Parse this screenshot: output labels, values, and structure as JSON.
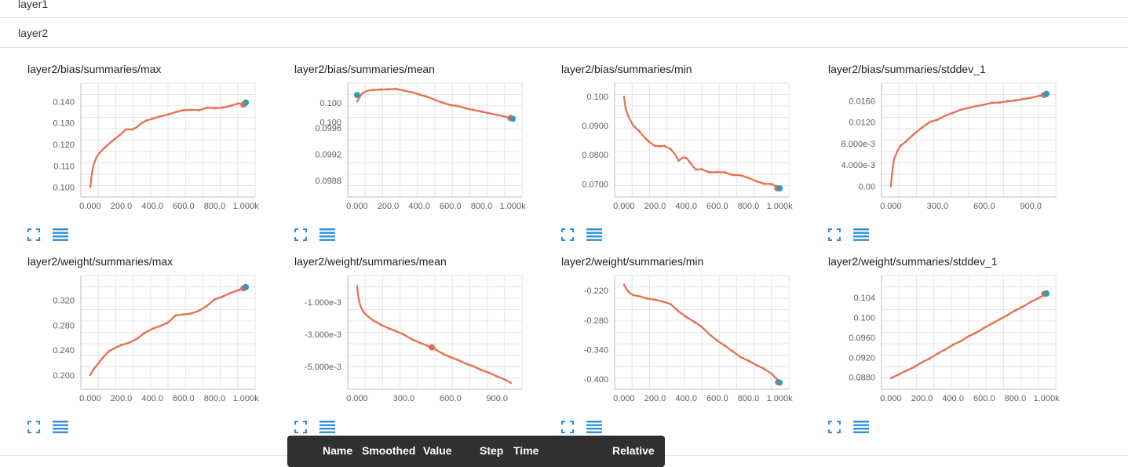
{
  "groups": [
    {
      "label": "layer1"
    },
    {
      "label": "layer2"
    }
  ],
  "tooltip": {
    "columns": [
      "Name",
      "Smoothed",
      "Value",
      "Step",
      "Time",
      "Relative"
    ]
  },
  "colors": {
    "smoothed_line": "#e66e4f",
    "raw_line": "#f2b9a3",
    "hover_dot_run": "#3a98b9",
    "icon_blue": "#2f8ed8"
  },
  "icons": {
    "expand": "expand-corners-icon",
    "data_table": "data-table-icon"
  },
  "chart_data": [
    {
      "type": "line",
      "title": "layer2/bias/summaries/max",
      "x_ticks": [
        "0.000",
        "200.0",
        "400.0",
        "600.0",
        "800.0",
        "1.000k"
      ],
      "y_ticks": [
        "0.100",
        "0.110",
        "0.120",
        "0.130",
        "0.140"
      ],
      "xlim": [
        -60,
        1060
      ],
      "ylim": [
        0.0955,
        0.1485
      ],
      "x": [
        0,
        10,
        20,
        40,
        60,
        100,
        150,
        200,
        230,
        270,
        300,
        330,
        360,
        400,
        450,
        500,
        550,
        600,
        650,
        700,
        750,
        800,
        850,
        900,
        950,
        990,
        1000
      ],
      "y": [
        0.1,
        0.106,
        0.11,
        0.114,
        0.116,
        0.119,
        0.122,
        0.125,
        0.127,
        0.127,
        0.128,
        0.13,
        0.131,
        0.132,
        0.133,
        0.134,
        0.135,
        0.136,
        0.136,
        0.136,
        0.137,
        0.137,
        0.137,
        0.138,
        0.139,
        0.139,
        0.139
      ],
      "hover_points": [
        {
          "x": 985,
          "y": 0.1385,
          "color": "#e66e4f"
        },
        {
          "x": 1000,
          "y": 0.1395,
          "color": "#3a98b9"
        }
      ]
    },
    {
      "type": "line",
      "title": "layer2/bias/summaries/mean",
      "x_ticks": [
        "0.000",
        "200.0",
        "400.0",
        "600.0",
        "800.0",
        "1.000k"
      ],
      "y_ticks": [
        "0.0988",
        "0.0992",
        "0.0996",
        "0.100",
        "0.100"
      ],
      "xlim": [
        -60,
        1060
      ],
      "ylim": [
        0.09855,
        0.10028
      ],
      "x": [
        0,
        30,
        60,
        100,
        150,
        200,
        250,
        300,
        350,
        400,
        450,
        500,
        550,
        600,
        650,
        700,
        750,
        800,
        850,
        900,
        950,
        990,
        1000
      ],
      "y": [
        0.1,
        0.10012,
        0.10016,
        0.10018,
        0.10018,
        0.10019,
        0.10019,
        0.10017,
        0.10014,
        0.10011,
        0.10007,
        0.10003,
        0.09998,
        0.09995,
        0.09993,
        0.0999,
        0.09987,
        0.09985,
        0.09982,
        0.0998,
        0.09977,
        0.09975,
        0.09974
      ],
      "hover_points": [
        {
          "x": 0,
          "y": 0.1001,
          "color": "#3a98b9"
        },
        {
          "x": 985,
          "y": 0.09975,
          "color": "#e66e4f"
        },
        {
          "x": 1000,
          "y": 0.09974,
          "color": "#3a98b9"
        }
      ]
    },
    {
      "type": "line",
      "title": "layer2/bias/summaries/min",
      "x_ticks": [
        "0.000",
        "200.0",
        "400.0",
        "600.0",
        "800.0",
        "1.000k"
      ],
      "y_ticks": [
        "0.0700",
        "0.0800",
        "0.0900",
        "0.100"
      ],
      "xlim": [
        -60,
        1060
      ],
      "ylim": [
        0.0655,
        0.1046
      ],
      "x": [
        0,
        10,
        30,
        60,
        100,
        150,
        200,
        230,
        260,
        300,
        330,
        350,
        380,
        400,
        430,
        460,
        500,
        550,
        600,
        650,
        700,
        750,
        800,
        850,
        900,
        950,
        1000
      ],
      "y": [
        0.1,
        0.096,
        0.093,
        0.09,
        0.088,
        0.085,
        0.083,
        0.083,
        0.083,
        0.082,
        0.08,
        0.078,
        0.079,
        0.079,
        0.077,
        0.075,
        0.075,
        0.074,
        0.074,
        0.074,
        0.073,
        0.073,
        0.072,
        0.071,
        0.07,
        0.07,
        0.0685
      ],
      "hover_points": [
        {
          "x": 985,
          "y": 0.0685,
          "color": "#e66e4f"
        },
        {
          "x": 1000,
          "y": 0.0685,
          "color": "#3a98b9"
        }
      ]
    },
    {
      "type": "line",
      "title": "layer2/bias/summaries/stddev_1",
      "x_ticks": [
        "0.000",
        "300.0",
        "600.0",
        "900.0"
      ],
      "y_ticks": [
        "0.00",
        "4.000e-3",
        "8.000e-3",
        "0.0120",
        "0.0160"
      ],
      "xlim": [
        -60,
        1060
      ],
      "ylim": [
        -0.002,
        0.0193
      ],
      "x": [
        0,
        10,
        20,
        40,
        60,
        100,
        150,
        200,
        250,
        300,
        350,
        400,
        450,
        500,
        550,
        600,
        650,
        700,
        750,
        800,
        850,
        900,
        950,
        990,
        1000
      ],
      "y": [
        0.0,
        0.003,
        0.005,
        0.0065,
        0.0075,
        0.0085,
        0.0098,
        0.011,
        0.012,
        0.0125,
        0.0132,
        0.0138,
        0.0143,
        0.0147,
        0.015,
        0.0153,
        0.0156,
        0.0157,
        0.0159,
        0.0161,
        0.0163,
        0.0166,
        0.0169,
        0.0171,
        0.0172
      ],
      "hover_points": [
        {
          "x": 985,
          "y": 0.0171,
          "color": "#e66e4f"
        },
        {
          "x": 1000,
          "y": 0.0173,
          "color": "#3a98b9"
        }
      ]
    },
    {
      "type": "line",
      "title": "layer2/weight/summaries/max",
      "x_ticks": [
        "0.000",
        "200.0",
        "400.0",
        "600.0",
        "800.0",
        "1.000k"
      ],
      "y_ticks": [
        "0.200",
        "0.240",
        "0.280",
        "0.320"
      ],
      "xlim": [
        -60,
        1060
      ],
      "ylim": [
        0.1775,
        0.3595
      ],
      "x": [
        0,
        20,
        50,
        80,
        120,
        160,
        200,
        250,
        300,
        350,
        400,
        450,
        500,
        550,
        600,
        650,
        700,
        750,
        800,
        850,
        900,
        950,
        1000
      ],
      "y": [
        0.2,
        0.209,
        0.218,
        0.228,
        0.238,
        0.244,
        0.248,
        0.252,
        0.258,
        0.268,
        0.274,
        0.279,
        0.284,
        0.296,
        0.297,
        0.299,
        0.303,
        0.311,
        0.321,
        0.326,
        0.331,
        0.336,
        0.341
      ],
      "hover_points": [
        {
          "x": 985,
          "y": 0.339,
          "color": "#e66e4f"
        },
        {
          "x": 1000,
          "y": 0.341,
          "color": "#3a98b9"
        }
      ]
    },
    {
      "type": "line",
      "title": "layer2/weight/summaries/mean",
      "x_ticks": [
        "0.000",
        "300.0",
        "600.0",
        "900.0"
      ],
      "y_ticks": [
        "-1.000e-3",
        "-3.000e-3",
        "-5.000e-3"
      ],
      "xlim": [
        -60,
        1060
      ],
      "ylim": [
        -0.0064,
        0.00065
      ],
      "x": [
        0,
        10,
        20,
        40,
        70,
        100,
        150,
        200,
        250,
        300,
        350,
        400,
        450,
        500,
        550,
        600,
        650,
        700,
        750,
        800,
        850,
        900,
        950,
        990
      ],
      "y": [
        0.0,
        -0.0008,
        -0.0012,
        -0.0016,
        -0.0019,
        -0.0021,
        -0.0024,
        -0.0026,
        -0.0028,
        -0.003,
        -0.0033,
        -0.0035,
        -0.0037,
        -0.0039,
        -0.0042,
        -0.0044,
        -0.0046,
        -0.0048,
        -0.005,
        -0.0052,
        -0.0054,
        -0.0056,
        -0.0058,
        -0.006
      ],
      "hover_points": [
        {
          "x": 480,
          "y": -0.0038,
          "color": "#e66e4f"
        }
      ]
    },
    {
      "type": "line",
      "title": "layer2/weight/summaries/min",
      "x_ticks": [
        "0.000",
        "200.0",
        "400.0",
        "600.0",
        "800.0",
        "1.000k"
      ],
      "y_ticks": [
        "-0.220",
        "-0.280",
        "-0.340",
        "-0.400"
      ],
      "xlim": [
        -60,
        1060
      ],
      "ylim": [
        -0.4205,
        -0.1895
      ],
      "x": [
        0,
        20,
        40,
        60,
        100,
        150,
        200,
        250,
        300,
        350,
        400,
        450,
        500,
        550,
        600,
        650,
        700,
        750,
        800,
        850,
        900,
        950,
        1000
      ],
      "y": [
        -0.208,
        -0.219,
        -0.226,
        -0.229,
        -0.232,
        -0.236,
        -0.239,
        -0.242,
        -0.248,
        -0.262,
        -0.274,
        -0.283,
        -0.294,
        -0.309,
        -0.322,
        -0.332,
        -0.344,
        -0.355,
        -0.363,
        -0.371,
        -0.379,
        -0.389,
        -0.406
      ],
      "hover_points": [
        {
          "x": 990,
          "y": -0.406,
          "color": "#e66e4f"
        },
        {
          "x": 1000,
          "y": -0.407,
          "color": "#3a98b9"
        }
      ]
    },
    {
      "type": "line",
      "title": "layer2/weight/summaries/stddev_1",
      "x_ticks": [
        "0.000",
        "200.0",
        "400.0",
        "600.0",
        "800.0",
        "1.000k"
      ],
      "y_ticks": [
        "0.0880",
        "0.0920",
        "0.0960",
        "0.100",
        "0.104"
      ],
      "xlim": [
        -60,
        1060
      ],
      "ylim": [
        0.0856,
        0.1084
      ],
      "x": [
        0,
        50,
        100,
        150,
        200,
        250,
        300,
        350,
        400,
        450,
        500,
        550,
        600,
        650,
        700,
        750,
        800,
        850,
        900,
        950,
        1000
      ],
      "y": [
        0.0878,
        0.0886,
        0.0893,
        0.0901,
        0.091,
        0.0918,
        0.0927,
        0.0936,
        0.0945,
        0.0953,
        0.0962,
        0.097,
        0.0979,
        0.0988,
        0.0996,
        0.1005,
        0.1014,
        0.1022,
        0.1031,
        0.1039,
        0.1048
      ],
      "hover_points": [
        {
          "x": 985,
          "y": 0.1047,
          "color": "#e66e4f"
        },
        {
          "x": 1000,
          "y": 0.1048,
          "color": "#3a98b9"
        }
      ]
    }
  ]
}
